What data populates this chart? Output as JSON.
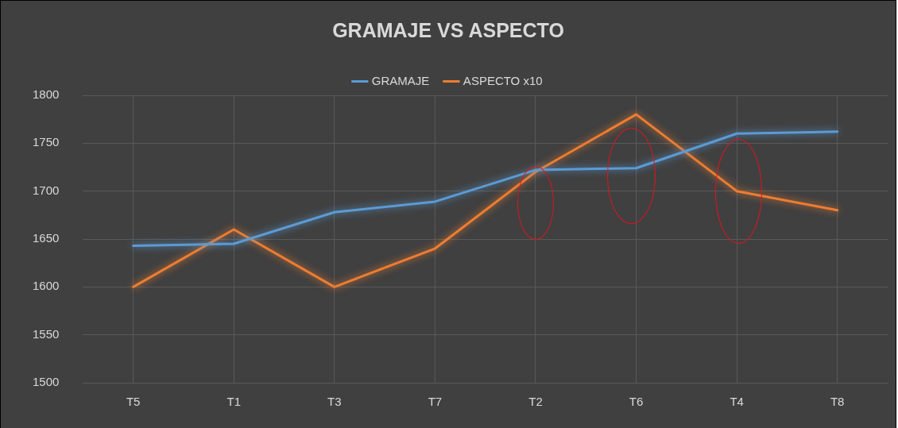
{
  "chart_data": {
    "type": "line",
    "title": "GRAMAJE VS ASPECTO",
    "categories": [
      "T5",
      "T1",
      "T3",
      "T7",
      "T2",
      "T6",
      "T4",
      "T8"
    ],
    "series": [
      {
        "name": "GRAMAJE",
        "color": "#5b9bd5",
        "values": [
          1643,
          1645,
          1678,
          1689,
          1722,
          1724,
          1760,
          1762
        ]
      },
      {
        "name": "ASPECTO x10",
        "color": "#ed7d31",
        "values": [
          1600,
          1660,
          1600,
          1640,
          1720,
          1780,
          1700,
          1680
        ]
      }
    ],
    "ylim": [
      1500,
      1800
    ],
    "yticks": [
      1500,
      1550,
      1600,
      1650,
      1700,
      1750,
      1800
    ],
    "grid": true,
    "legend": "top",
    "marker": "none",
    "line_style": "solid"
  }
}
